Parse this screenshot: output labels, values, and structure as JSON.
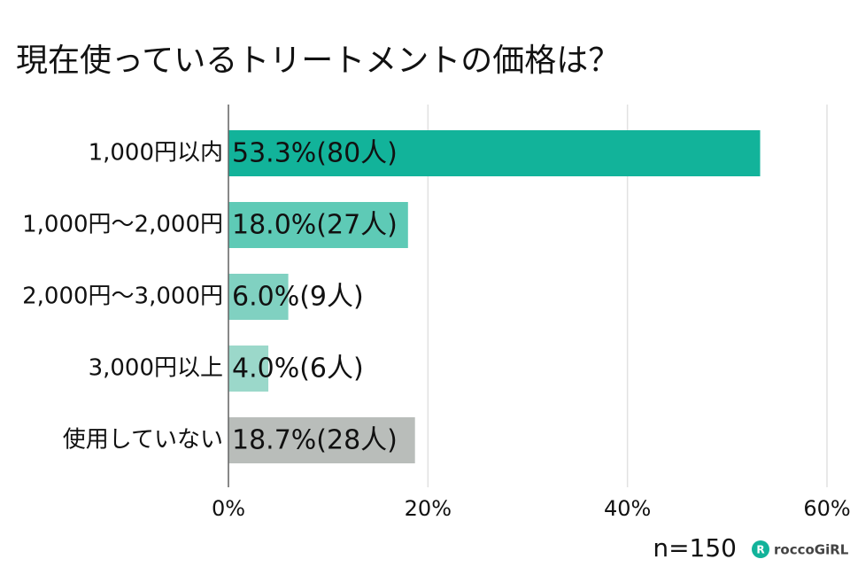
{
  "chart_data": {
    "type": "bar",
    "orientation": "horizontal",
    "title": "現在使っているトリートメントの価格は？",
    "categories": [
      "1,000円以内",
      "1,000円～2,000円",
      "2,000円～3,000円",
      "3,000円以上",
      "使用していない"
    ],
    "values": [
      53.3,
      18.0,
      6.0,
      4.0,
      18.7
    ],
    "value_labels": [
      "53.3%(80人)",
      "18.0%(27人)",
      "6.0%(9人)",
      "4.0%(6人)",
      "18.7%(28人)"
    ],
    "colors": [
      "#12b39a",
      "#5ecab6",
      "#80d1c1",
      "#9bd8ca",
      "#b9bdba"
    ],
    "xlim": [
      0,
      60
    ],
    "xticks": [
      {
        "value": 0,
        "label": "0%"
      },
      {
        "value": 20,
        "label": "20%"
      },
      {
        "value": 40,
        "label": "40%"
      },
      {
        "value": 60,
        "label": "60%"
      }
    ],
    "grid": true,
    "note": "n=150",
    "logo": "roccoGiRL"
  }
}
